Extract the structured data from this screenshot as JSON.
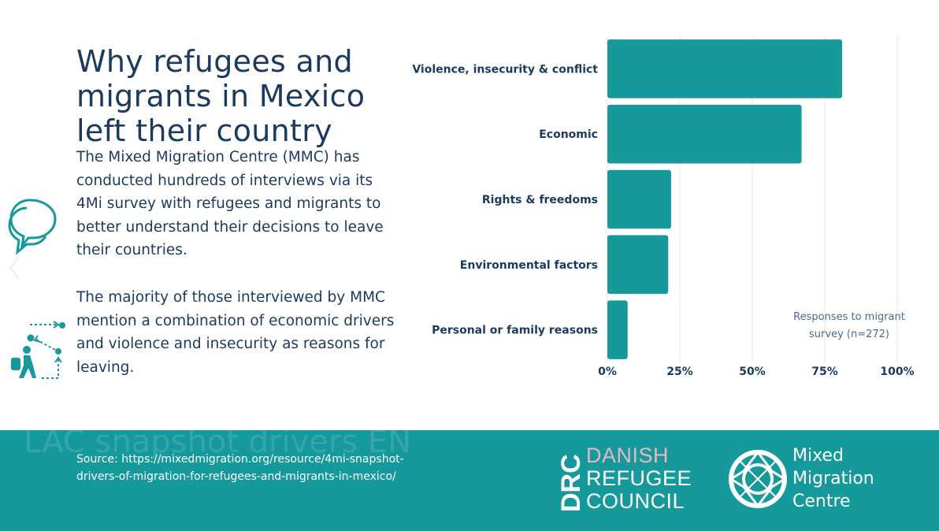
{
  "title": "Why refugees and migrants in Mexico left their country",
  "paragraphs": {
    "p1": "The Mixed Migration Centre (MMC) has conducted hundreds of interviews via its 4Mi survey with refugees and migrants to better understand their decisions to leave their countries.",
    "p2": "The majority of those interviewed by MMC mention a combination of economic drivers and violence and insecurity as reasons for leaving."
  },
  "icons": [
    "chat-bubbles-icon",
    "walking-person-with-path-icon"
  ],
  "colors": {
    "bar": "#16999b",
    "text": "#1b3a5f",
    "footer": "#16999b"
  },
  "chart_data": {
    "type": "bar",
    "orientation": "horizontal",
    "categories": [
      "Violence, insecurity & conflict",
      "Economic",
      "Rights & freedoms",
      "Environmental factors",
      "Personal or family reasons"
    ],
    "values": [
      81,
      67,
      22,
      21,
      7
    ],
    "xlim": [
      0,
      100
    ],
    "xticks": [
      "0%",
      "25%",
      "50%",
      "75%",
      "100%"
    ],
    "grid": true,
    "annotation": "Responses to migrant survey (n=272)"
  },
  "footer": {
    "watermark": "LAC snapshot drivers EN",
    "source": "Source: https://mixedmigration.org/resource/4mi-snapshot-drivers-of-migration-for-refugees-and-migrants-in-mexico/",
    "drc_letters": "DRC",
    "drc_words": [
      "DANISH",
      "REFUGEE",
      "COUNCIL"
    ],
    "mmc_words": [
      "Mixed",
      "Migration",
      "Centre"
    ]
  }
}
